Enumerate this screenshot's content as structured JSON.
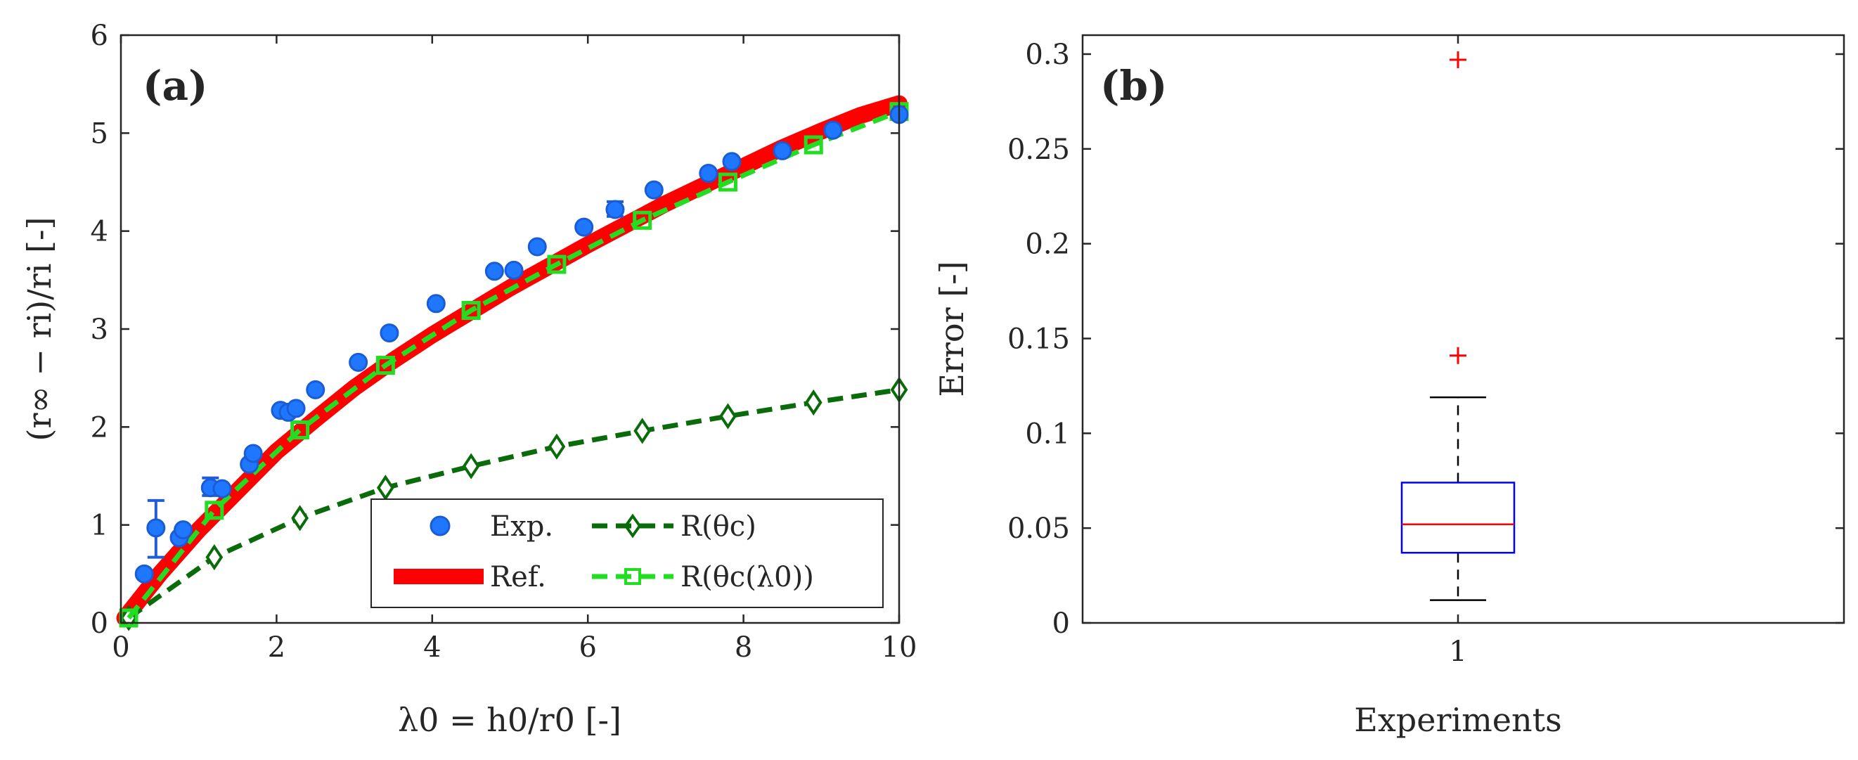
{
  "chart_data": [
    {
      "type": "scatter",
      "panel_label": "(a)",
      "xlabel": "λ0 = h0/r0 [-]",
      "ylabel": "(r∞ − ri)/ri [-]",
      "xlim": [
        0,
        10
      ],
      "ylim": [
        0,
        6
      ],
      "xticks": [
        "0",
        "2",
        "4",
        "6",
        "8",
        "10"
      ],
      "yticks": [
        "0",
        "1",
        "2",
        "3",
        "4",
        "5",
        "6"
      ],
      "legend_position": "bottom-right",
      "series": [
        {
          "name": "Exp.",
          "kind": "scatter",
          "color": "#1f77ff",
          "points": [
            [
              0.3,
              0.5
            ],
            [
              0.45,
              0.97
            ],
            [
              0.75,
              0.87
            ],
            [
              0.8,
              0.95
            ],
            [
              1.15,
              1.38
            ],
            [
              1.3,
              1.37
            ],
            [
              1.65,
              1.62
            ],
            [
              1.7,
              1.73
            ],
            [
              2.05,
              2.17
            ],
            [
              2.15,
              2.15
            ],
            [
              2.25,
              2.19
            ],
            [
              2.5,
              2.38
            ],
            [
              3.05,
              2.66
            ],
            [
              3.45,
              2.96
            ],
            [
              4.05,
              3.26
            ],
            [
              4.8,
              3.59
            ],
            [
              5.05,
              3.6
            ],
            [
              5.35,
              3.84
            ],
            [
              5.95,
              4.04
            ],
            [
              6.35,
              4.22
            ],
            [
              6.85,
              4.42
            ],
            [
              7.55,
              4.59
            ],
            [
              7.85,
              4.71
            ],
            [
              8.5,
              4.82
            ],
            [
              9.15,
              5.03
            ],
            [
              10.0,
              5.19
            ]
          ],
          "error_bars": [
            {
              "x": 0.45,
              "y": 0.97,
              "low": 0.67,
              "high": 1.25
            },
            {
              "x": 1.15,
              "y": 1.38,
              "low": 1.3,
              "high": 1.48
            },
            {
              "x": 6.35,
              "y": 4.22,
              "low": 4.15,
              "high": 4.3
            }
          ]
        },
        {
          "name": "Ref.",
          "kind": "line",
          "color": "#ff0000",
          "points": [
            [
              0.05,
              0.05
            ],
            [
              0.5,
              0.5
            ],
            [
              1.0,
              0.95
            ],
            [
              1.5,
              1.35
            ],
            [
              2.0,
              1.75
            ],
            [
              2.5,
              2.08
            ],
            [
              3.0,
              2.4
            ],
            [
              3.5,
              2.68
            ],
            [
              4.0,
              2.94
            ],
            [
              4.5,
              3.18
            ],
            [
              5.0,
              3.42
            ],
            [
              5.5,
              3.64
            ],
            [
              6.0,
              3.86
            ],
            [
              6.5,
              4.07
            ],
            [
              7.0,
              4.28
            ],
            [
              7.5,
              4.47
            ],
            [
              8.0,
              4.66
            ],
            [
              8.5,
              4.85
            ],
            [
              9.0,
              5.02
            ],
            [
              9.5,
              5.18
            ],
            [
              10.0,
              5.3
            ]
          ]
        },
        {
          "name": "R(θc)",
          "kind": "line-marker",
          "marker": "diamond",
          "color": "#0a6b0a",
          "points": [
            [
              0.1,
              0.05
            ],
            [
              1.2,
              0.67
            ],
            [
              2.3,
              1.07
            ],
            [
              3.4,
              1.38
            ],
            [
              4.5,
              1.6
            ],
            [
              5.6,
              1.8
            ],
            [
              6.7,
              1.96
            ],
            [
              7.8,
              2.11
            ],
            [
              8.9,
              2.25
            ],
            [
              10.0,
              2.38
            ]
          ]
        },
        {
          "name": "R(θc(λ0))",
          "kind": "line-marker",
          "marker": "square",
          "color": "#22dd22",
          "points": [
            [
              0.1,
              0.05
            ],
            [
              1.2,
              1.15
            ],
            [
              2.3,
              1.97
            ],
            [
              3.4,
              2.63
            ],
            [
              4.5,
              3.19
            ],
            [
              5.6,
              3.66
            ],
            [
              6.7,
              4.11
            ],
            [
              7.8,
              4.5
            ],
            [
              8.9,
              4.88
            ],
            [
              10.0,
              5.22
            ]
          ]
        }
      ]
    },
    {
      "type": "box",
      "panel_label": "(b)",
      "xlabel": "Experiments",
      "ylabel": "Error [-]",
      "ylim": [
        0,
        0.31
      ],
      "xticks": [
        "1"
      ],
      "yticks": [
        "0",
        "0.05",
        "0.1",
        "0.15",
        "0.2",
        "0.25",
        "0.3"
      ],
      "box": {
        "category": "1",
        "whisker_low": 0.012,
        "q1": 0.037,
        "median": 0.052,
        "q3": 0.074,
        "whisker_high": 0.119,
        "outliers": [
          0.141,
          0.297
        ],
        "box_color": "#0000ff",
        "median_color": "#ff0000",
        "outlier_color": "#ff0000"
      }
    }
  ]
}
